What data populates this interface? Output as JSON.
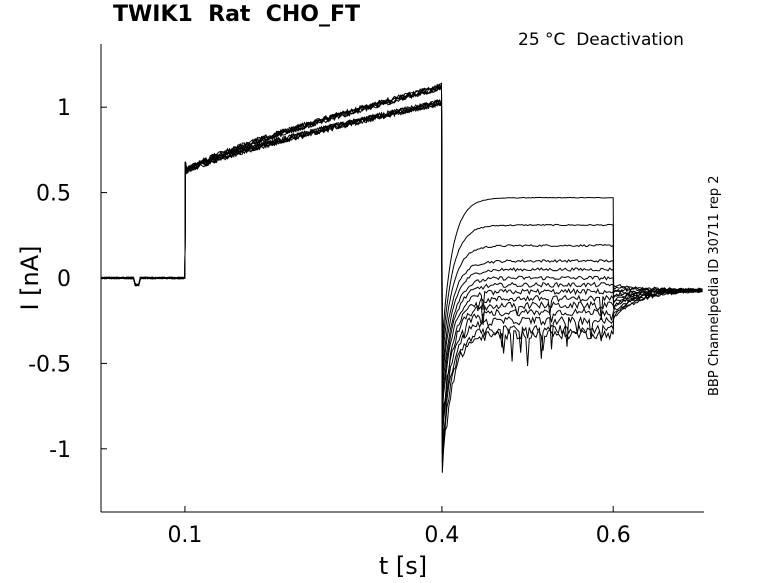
{
  "header": {
    "title": "TWIK1  Rat  CHO_FT",
    "condition": "25 °C  Deactivation",
    "side_label": "BBP Channelpedia ID 30711 rep 2"
  },
  "chart_data": {
    "type": "line",
    "title": "TWIK1  Rat  CHO_FT",
    "xlabel": "t [s]",
    "ylabel": "I [nA]",
    "xlim": [
      0.002,
      0.706
    ],
    "ylim": [
      -1.37,
      1.37
    ],
    "xticks": [
      0.1,
      0.4,
      0.6
    ],
    "xtick_labels": [
      "0.1",
      "0.4",
      "0.6"
    ],
    "yticks": [
      1,
      0.5,
      0,
      -0.5,
      -1
    ],
    "ytick_labels": [
      "1",
      "0.5",
      "0",
      "-0.5",
      "-1"
    ],
    "grid": false,
    "segments": {
      "holding": {
        "t0": 0.002,
        "t1": 0.1,
        "level": 0.0
      },
      "activation": {
        "t0": 0.1,
        "t1": 0.4,
        "start": 0.62,
        "end_min": 0.95,
        "end_max": 1.12
      },
      "deactivation_test": {
        "t0": 0.4,
        "t1": 0.6,
        "levels": [
          0.47,
          0.31,
          0.19,
          0.1,
          0.05,
          0.0,
          -0.04,
          -0.08,
          -0.12,
          -0.16,
          -0.2,
          -0.25,
          -0.3,
          -0.33
        ],
        "tail_min": -1.14
      },
      "return": {
        "t0": 0.6,
        "t1": 0.706,
        "start": -0.04,
        "end": -0.07
      }
    },
    "sweeps": 14
  }
}
